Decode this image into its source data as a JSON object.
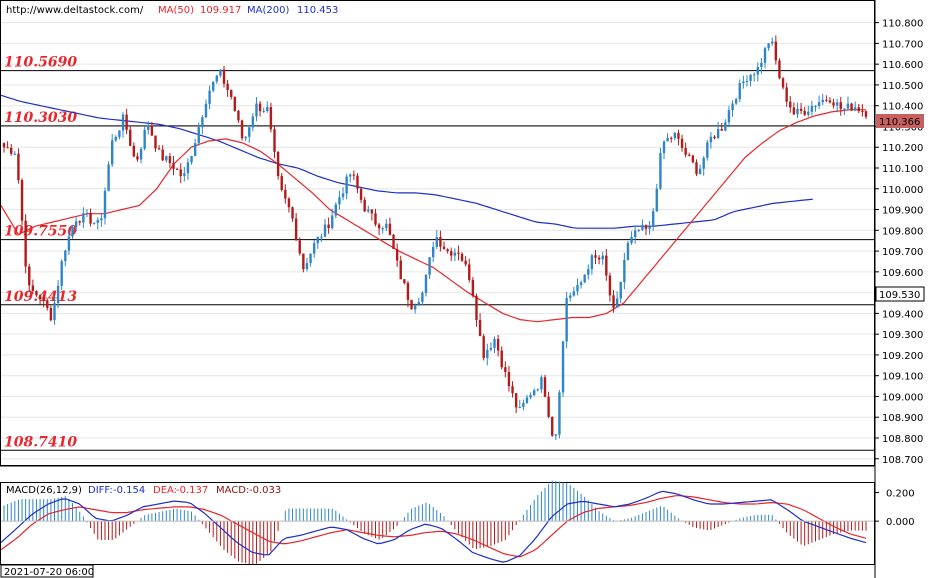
{
  "header": {
    "url": "http://www.deltastock.com/",
    "ma50_label": "MA(50)",
    "ma50_value": "109.917",
    "ma200_label": "MA(200)",
    "ma200_value": "110.453"
  },
  "colors": {
    "up": "#2e86c8",
    "down": "#b31a1a",
    "ma50": "#e8262b",
    "ma200": "#1d2fc9",
    "level_text": "#e8262b",
    "grid": "#e6e6e6",
    "current_tag": "#c96060"
  },
  "chart_data": [
    {
      "type": "candlestick",
      "ylim": [
        108.67,
        110.88
      ],
      "y_ticks": [
        "110.800",
        "110.700",
        "110.600",
        "110.500",
        "110.400",
        "110.300",
        "110.200",
        "110.100",
        "110.000",
        "109.900",
        "109.800",
        "109.700",
        "109.600",
        "109.500",
        "109.400",
        "109.300",
        "109.200",
        "109.100",
        "109.000",
        "108.900",
        "108.800",
        "108.700"
      ],
      "levels": [
        {
          "label": "110.5690",
          "value": 110.569
        },
        {
          "label": "110.3030",
          "value": 110.303
        },
        {
          "label": "109.7550",
          "value": 109.755
        },
        {
          "label": "109.4413",
          "value": 109.4413
        },
        {
          "label": "108.7410",
          "value": 108.741
        }
      ],
      "current_price": "110.366",
      "cursor_price": "109.530",
      "x_start_label": "2021-07-20 06:00",
      "anchors": [
        110.2,
        110.18,
        109.52,
        109.48,
        109.38,
        109.7,
        109.86,
        109.86,
        109.82,
        110.22,
        110.34,
        110.12,
        110.32,
        110.16,
        110.12,
        110.05,
        110.24,
        110.46,
        110.56,
        110.44,
        110.22,
        110.4,
        110.38,
        110.0,
        109.88,
        109.62,
        109.74,
        109.82,
        109.96,
        110.08,
        109.92,
        109.84,
        109.82,
        109.6,
        109.44,
        109.5,
        109.78,
        109.7,
        109.7,
        109.56,
        109.2,
        109.28,
        109.08,
        108.92,
        109.02,
        109.08,
        108.76,
        109.48,
        109.52,
        109.66,
        109.66,
        109.38,
        109.72,
        109.8,
        109.8,
        110.22,
        110.26,
        110.16,
        110.08,
        110.24,
        110.3,
        110.44,
        110.54,
        110.58,
        110.73,
        110.48,
        110.36,
        110.38,
        110.42,
        110.44,
        110.38,
        110.4,
        110.37
      ],
      "ma50": [
        109.92,
        109.78,
        109.82,
        109.84,
        109.86,
        109.88,
        109.88,
        109.9,
        109.92,
        110.0,
        110.12,
        110.2,
        110.23,
        110.24,
        110.22,
        110.18,
        110.12,
        110.05,
        109.98,
        109.9,
        109.85,
        109.8,
        109.75,
        109.7,
        109.66,
        109.62,
        109.56,
        109.5,
        109.45,
        109.4,
        109.37,
        109.36,
        109.37,
        109.38,
        109.38,
        109.4,
        109.45,
        109.55,
        109.65,
        109.75,
        109.85,
        109.95,
        110.05,
        110.15,
        110.22,
        110.28,
        110.32,
        110.35,
        110.37,
        110.38,
        110.38
      ],
      "ma200": [
        110.45,
        110.42,
        110.4,
        110.38,
        110.36,
        110.34,
        110.33,
        110.32,
        110.31,
        110.29,
        110.26,
        110.23,
        110.19,
        110.15,
        110.12,
        110.1,
        110.06,
        110.03,
        110.01,
        109.99,
        109.98,
        109.98,
        109.97,
        109.95,
        109.93,
        109.9,
        109.87,
        109.84,
        109.83,
        109.81,
        109.81,
        109.81,
        109.82,
        109.82,
        109.83,
        109.84,
        109.85,
        109.89,
        109.91,
        109.93,
        109.94,
        109.95
      ],
      "ma200_end_index": 0.93
    },
    {
      "type": "macd",
      "title": "MACD(26,12,9)",
      "diff_label": "DIFF:",
      "diff_value": "-0.154",
      "dea_label": "DEA:",
      "dea_value": "-0.137",
      "macd_label": "MACD:",
      "macd_value": "-0.033",
      "ylim": [
        -0.3,
        0.26
      ],
      "y_ticks": [
        "0.200",
        "0.000"
      ],
      "diff": [
        -0.15,
        -0.05,
        0.05,
        0.12,
        0.16,
        0.12,
        0.02,
        0.0,
        0.04,
        0.1,
        0.12,
        0.14,
        0.13,
        0.05,
        -0.05,
        -0.15,
        -0.22,
        -0.24,
        -0.12,
        -0.1,
        -0.07,
        -0.04,
        -0.06,
        -0.12,
        -0.16,
        -0.13,
        -0.06,
        -0.02,
        -0.05,
        -0.13,
        -0.22,
        -0.26,
        -0.29,
        -0.24,
        -0.12,
        0.03,
        0.12,
        0.14,
        0.12,
        0.1,
        0.12,
        0.16,
        0.21,
        0.19,
        0.15,
        0.12,
        0.12,
        0.13,
        0.14,
        0.15,
        0.08,
        0.0,
        -0.04,
        -0.08,
        -0.12,
        -0.15
      ],
      "dea": [
        -0.2,
        -0.12,
        -0.02,
        0.05,
        0.08,
        0.1,
        0.08,
        0.06,
        0.06,
        0.08,
        0.09,
        0.1,
        0.1,
        0.08,
        0.04,
        -0.02,
        -0.08,
        -0.14,
        -0.16,
        -0.14,
        -0.11,
        -0.08,
        -0.06,
        -0.08,
        -0.1,
        -0.11,
        -0.1,
        -0.08,
        -0.07,
        -0.09,
        -0.13,
        -0.18,
        -0.23,
        -0.25,
        -0.2,
        -0.1,
        0.0,
        0.06,
        0.09,
        0.1,
        0.11,
        0.13,
        0.16,
        0.18,
        0.17,
        0.15,
        0.13,
        0.12,
        0.12,
        0.13,
        0.12,
        0.08,
        0.02,
        -0.04,
        -0.09,
        -0.12
      ]
    }
  ]
}
